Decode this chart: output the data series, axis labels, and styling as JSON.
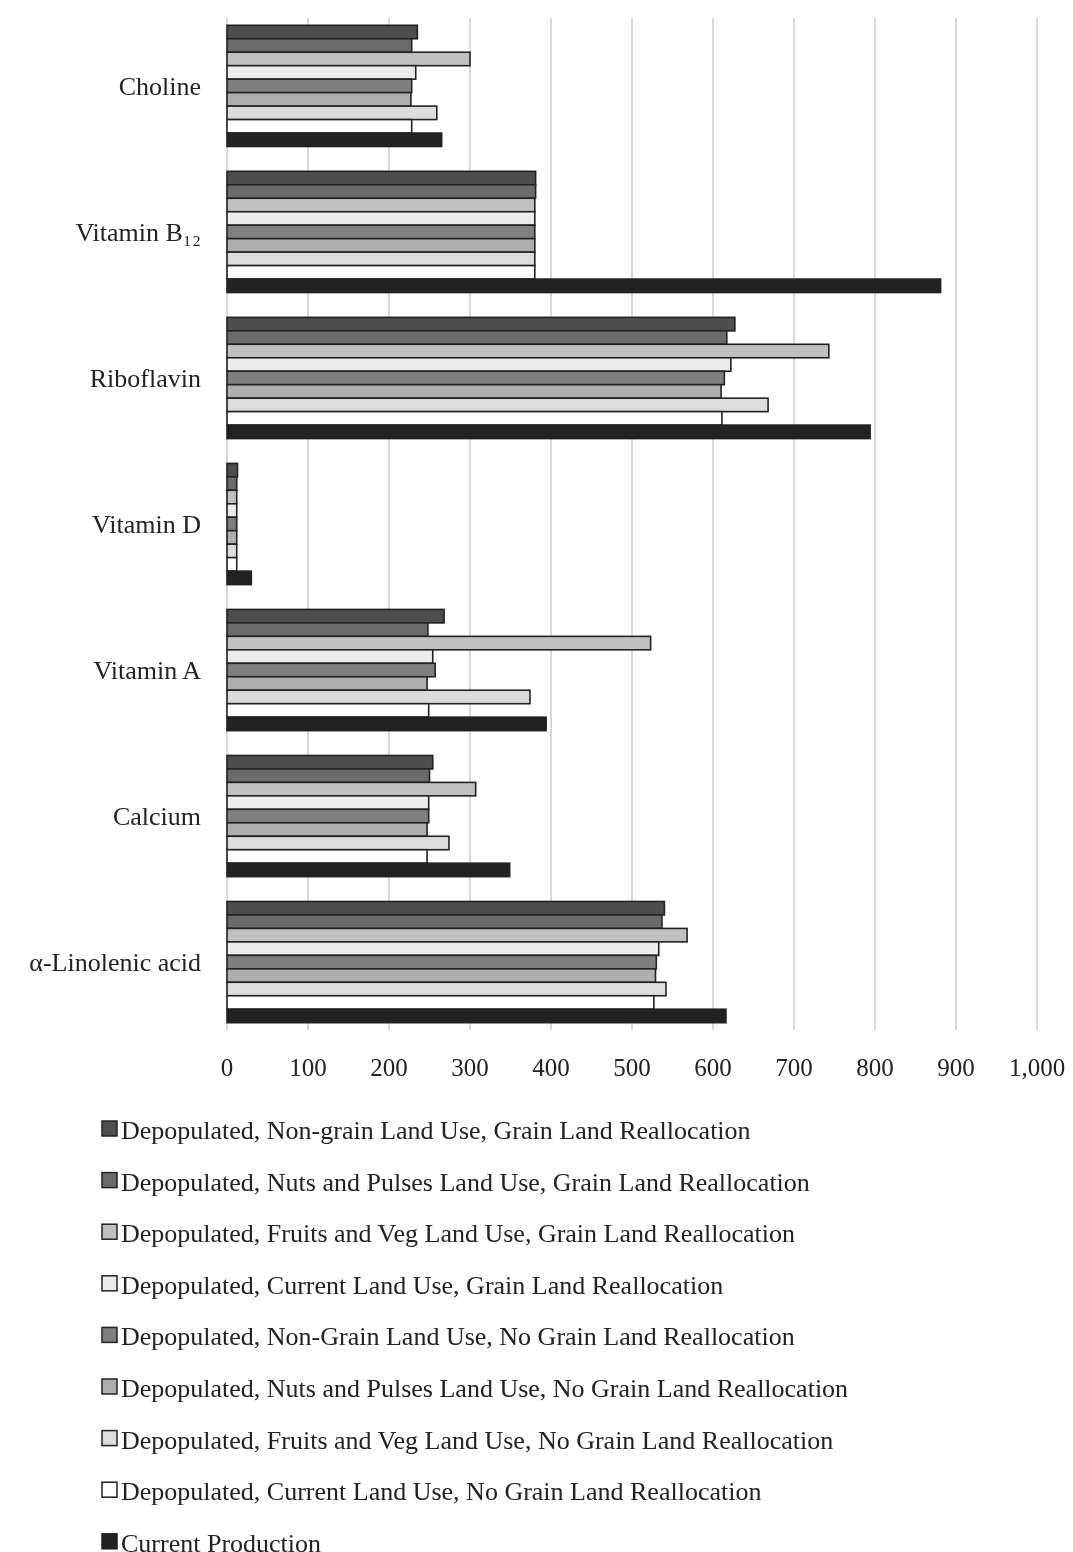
{
  "chart_data": {
    "type": "bar",
    "orientation": "horizontal",
    "categories": [
      "Choline",
      "Vitamin B₁₂",
      "Riboflavin",
      "Vitamin D",
      "Vitamin A",
      "Calcium",
      "α-Linolenic acid"
    ],
    "series": [
      {
        "name": "Depopulated, Non-grain Land Use, Grain Land Reallocation",
        "color": "#4d4d4d",
        "values": [
          235,
          381,
          627,
          13,
          268,
          254,
          540
        ]
      },
      {
        "name": "Depopulated, Nuts and Pulses Land Use, Grain Land Reallocation",
        "color": "#6b6b6b",
        "values": [
          228,
          381,
          617,
          12,
          248,
          250,
          537
        ]
      },
      {
        "name": "Depopulated, Fruits and Veg Land Use, Grain Land Reallocation",
        "color": "#c0c0c0",
        "values": [
          300,
          380,
          743,
          12,
          523,
          307,
          568
        ]
      },
      {
        "name": "Depopulated, Current Land Use, Grain Land Reallocation",
        "color": "#ececec",
        "values": [
          233,
          380,
          622,
          12,
          254,
          249,
          533
        ]
      },
      {
        "name": "Depopulated, Non-Grain Land Use, No Grain Land Reallocation",
        "color": "#7f7f7f",
        "values": [
          228,
          380,
          614,
          12,
          257,
          249,
          530
        ]
      },
      {
        "name": "Depopulated, Nuts and Pulses Land Use, No Grain Land Reallocation",
        "color": "#afafaf",
        "values": [
          227,
          380,
          610,
          12,
          247,
          247,
          529
        ]
      },
      {
        "name": "Depopulated, Fruits and Veg Land Use, No Grain Land Reallocation",
        "color": "#dcdcdc",
        "values": [
          259,
          380,
          668,
          12,
          374,
          274,
          542
        ]
      },
      {
        "name": "Depopulated, Current Land Use, No Grain Land Reallocation",
        "color": "#ffffff",
        "values": [
          228,
          380,
          611,
          12,
          249,
          247,
          527
        ]
      },
      {
        "name": "Current Production",
        "color": "#222222",
        "values": [
          265,
          881,
          794,
          30,
          394,
          349,
          616
        ]
      }
    ],
    "xlim": [
      0,
      1000
    ],
    "xticks": [
      0,
      100,
      200,
      300,
      400,
      500,
      600,
      700,
      800,
      900,
      {
        "value": 1000,
        "label": "1,000"
      }
    ],
    "grid": "x",
    "legend": "bottom"
  }
}
